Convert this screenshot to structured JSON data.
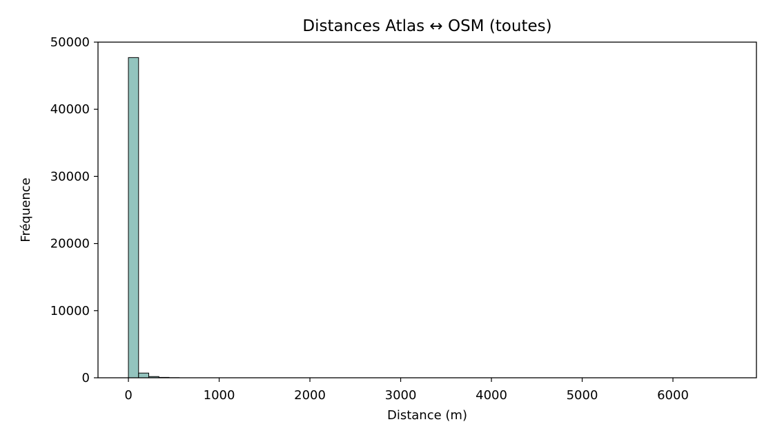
{
  "chart_data": {
    "type": "bar",
    "title": "Distances Atlas ↔ OSM (toutes)",
    "xlabel": "Distance (m)",
    "ylabel": "Fréquence",
    "xlim": [
      -335,
      6920
    ],
    "ylim": [
      0,
      50000
    ],
    "x_ticks": [
      0,
      1000,
      2000,
      3000,
      4000,
      5000,
      6000
    ],
    "y_ticks": [
      0,
      10000,
      20000,
      30000,
      40000,
      50000
    ],
    "bin_width": 112,
    "bins": [
      {
        "x": 0,
        "count": 47700
      },
      {
        "x": 112,
        "count": 700
      },
      {
        "x": 224,
        "count": 180
      },
      {
        "x": 336,
        "count": 60
      },
      {
        "x": 448,
        "count": 20
      }
    ],
    "grid": false,
    "bar_color": "#93c4be",
    "edge_color": "#000000"
  }
}
